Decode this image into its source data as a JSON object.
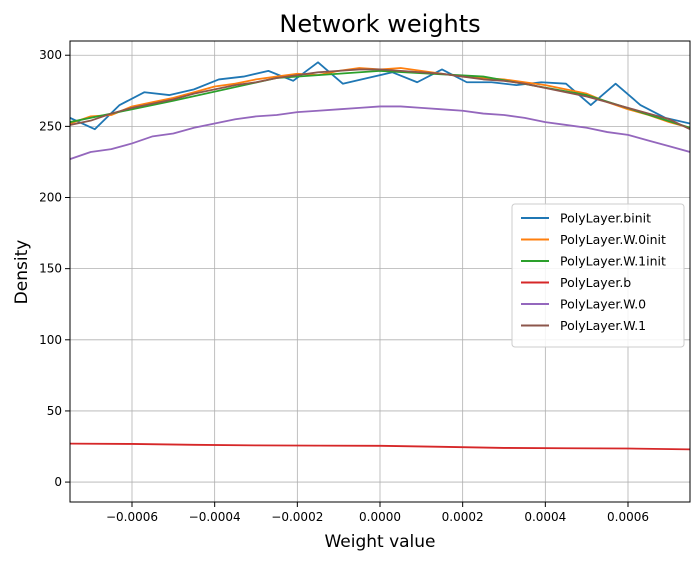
{
  "chart_data": {
    "type": "line",
    "title": "Network weights",
    "xlabel": "Weight value",
    "ylabel": "Density",
    "xlim": [
      -0.00075,
      0.00075
    ],
    "ylim": [
      -14,
      310
    ],
    "grid": true,
    "legend_position": "center-right",
    "xticks": [
      -0.0006,
      -0.0004,
      -0.0002,
      0.0,
      0.0002,
      0.0004,
      0.0006
    ],
    "xtick_labels": [
      "−0.0006",
      "−0.0004",
      "−0.0002",
      "0.0000",
      "0.0002",
      "0.0004",
      "0.0006"
    ],
    "yticks": [
      0,
      50,
      100,
      150,
      200,
      250,
      300
    ],
    "ytick_labels": [
      "0",
      "50",
      "100",
      "150",
      "200",
      "250",
      "300"
    ],
    "series": [
      {
        "name": "PolyLayer.binit",
        "color": "#1f77b4",
        "x": [
          -0.00075,
          -0.00069,
          -0.00063,
          -0.00057,
          -0.00051,
          -0.00045,
          -0.00039,
          -0.00033,
          -0.00027,
          -0.00021,
          -0.00015,
          -9e-05,
          -3e-05,
          3e-05,
          9e-05,
          0.00015,
          0.00021,
          0.00027,
          0.00033,
          0.00039,
          0.00045,
          0.00051,
          0.00057,
          0.00063,
          0.00069,
          0.00075
        ],
        "y": [
          256,
          248,
          265,
          274,
          272,
          276,
          283,
          285,
          289,
          282,
          295,
          280,
          284,
          288,
          281,
          290,
          281,
          281,
          279,
          281,
          280,
          265,
          280,
          265,
          256,
          252
        ]
      },
      {
        "name": "PolyLayer.W.0init",
        "color": "#ff7f0e",
        "x": [
          -0.00075,
          -0.0007,
          -0.00065,
          -0.0006,
          -0.00055,
          -0.0005,
          -0.00045,
          -0.0004,
          -0.00035,
          -0.0003,
          -0.00025,
          -0.0002,
          -0.00015,
          -0.0001,
          -5e-05,
          0.0,
          5e-05,
          0.0001,
          0.00015,
          0.0002,
          0.00025,
          0.0003,
          0.00035,
          0.0004,
          0.00045,
          0.0005,
          0.00055,
          0.0006,
          0.00065,
          0.0007,
          0.00075
        ],
        "y": [
          252,
          257,
          258,
          264,
          267,
          270,
          274,
          278,
          280,
          283,
          285,
          287,
          286,
          289,
          291,
          290,
          291,
          289,
          287,
          285,
          284,
          283,
          281,
          279,
          276,
          273,
          267,
          262,
          258,
          253,
          249
        ]
      },
      {
        "name": "PolyLayer.W.1init",
        "color": "#2ca02c",
        "x": [
          -0.00075,
          -0.0005,
          -0.00025,
          0.0,
          0.00025,
          0.0005,
          0.00075
        ],
        "y": [
          253,
          268,
          284,
          289,
          285,
          272,
          249
        ]
      },
      {
        "name": "PolyLayer.b",
        "color": "#d62728",
        "x": [
          -0.00075,
          -0.0006,
          -0.00045,
          -0.0003,
          -0.00015,
          0.0,
          0.00015,
          0.0003,
          0.00045,
          0.0006,
          0.00075
        ],
        "y": [
          27,
          26.8,
          26.2,
          25.8,
          25.6,
          25.5,
          24.8,
          24.0,
          23.8,
          23.6,
          23.0
        ]
      },
      {
        "name": "PolyLayer.W.0",
        "color": "#9467bd",
        "x": [
          -0.00075,
          -0.0007,
          -0.00065,
          -0.0006,
          -0.00055,
          -0.0005,
          -0.00045,
          -0.0004,
          -0.00035,
          -0.0003,
          -0.00025,
          -0.0002,
          -0.00015,
          -0.0001,
          -5e-05,
          0.0,
          5e-05,
          0.0001,
          0.00015,
          0.0002,
          0.00025,
          0.0003,
          0.00035,
          0.0004,
          0.00045,
          0.0005,
          0.00055,
          0.0006,
          0.00065,
          0.0007,
          0.00075
        ],
        "y": [
          227,
          232,
          234,
          238,
          243,
          245,
          249,
          252,
          255,
          257,
          258,
          260,
          261,
          262,
          263,
          264,
          264,
          263,
          262,
          261,
          259,
          258,
          256,
          253,
          251,
          249,
          246,
          244,
          240,
          236,
          232
        ]
      },
      {
        "name": "PolyLayer.W.1",
        "color": "#8c564b",
        "x": [
          -0.00075,
          -0.0007,
          -0.00065,
          -0.0006,
          -0.00055,
          -0.0005,
          -0.00045,
          -0.0004,
          -0.00035,
          -0.0003,
          -0.00025,
          -0.0002,
          -0.00015,
          -0.0001,
          -5e-05,
          0.0,
          5e-05,
          0.0001,
          0.00015,
          0.0002,
          0.00025,
          0.0003,
          0.00035,
          0.0004,
          0.00045,
          0.0005,
          0.00055,
          0.0006,
          0.00065,
          0.0007,
          0.00075
        ],
        "y": [
          251,
          254,
          259,
          263,
          266,
          269,
          273,
          276,
          279,
          281,
          284,
          286,
          288,
          289,
          290,
          290,
          289,
          288,
          287,
          285,
          283,
          282,
          280,
          277,
          274,
          271,
          267,
          263,
          259,
          255,
          248
        ]
      }
    ]
  }
}
